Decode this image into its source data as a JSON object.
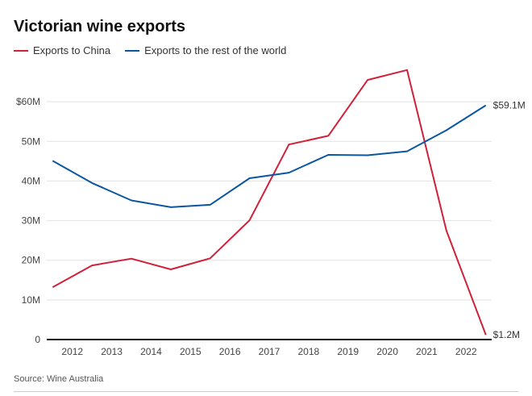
{
  "chart_data": {
    "type": "line",
    "title": "Victorian wine exports",
    "xlabel": "",
    "ylabel": "",
    "x": [
      2011.5,
      2012.5,
      2013.5,
      2014.5,
      2015.5,
      2016.5,
      2017.5,
      2018.5,
      2019.5,
      2020.5,
      2021.5,
      2022.5
    ],
    "xticks": [
      2012,
      2013,
      2014,
      2015,
      2016,
      2017,
      2018,
      2019,
      2020,
      2021,
      2022
    ],
    "xlim": [
      2011.35,
      2022.65
    ],
    "ylim": [
      0,
      70
    ],
    "yticks": [
      0,
      10,
      20,
      30,
      40,
      50,
      60
    ],
    "ytick_labels": [
      "0",
      "10M",
      "20M",
      "30M",
      "40M",
      "50M",
      "$60M"
    ],
    "grid": true,
    "legend": "top-left",
    "series": [
      {
        "name": "Exports to China",
        "color": "#d0213a",
        "values": [
          13.2,
          18.7,
          20.4,
          17.7,
          20.5,
          30.1,
          49.2,
          51.4,
          65.5,
          68.0,
          27.5,
          1.2
        ],
        "end_label": "$1.2M"
      },
      {
        "name": "Exports to the rest of the world",
        "color": "#0b56a1",
        "values": [
          45.1,
          39.5,
          35.1,
          33.4,
          34.0,
          40.7,
          42.1,
          46.6,
          46.5,
          47.5,
          52.8,
          59.1
        ],
        "end_label": "$59.1M"
      }
    ]
  },
  "source_text": "Source: Wine Australia"
}
